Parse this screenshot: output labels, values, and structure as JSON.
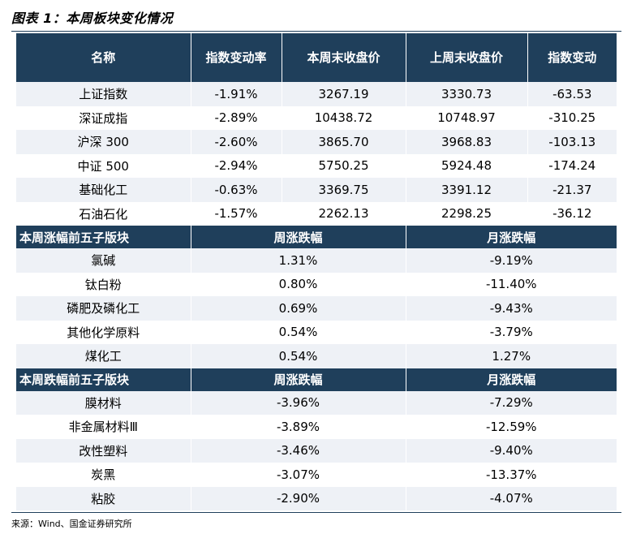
{
  "figure_title": "图表 1：本周板块变化情况",
  "source": "来源：Wind、国金证券研究所",
  "index_table": {
    "headers": [
      "名称",
      "指数变动率",
      "本周末收盘价",
      "上周末收盘价",
      "指数变动"
    ],
    "rows": [
      [
        "上证指数",
        "-1.91%",
        "3267.19",
        "3330.73",
        "-63.53"
      ],
      [
        "深证成指",
        "-2.89%",
        "10438.72",
        "10748.97",
        "-310.25"
      ],
      [
        "沪深 300",
        "-2.60%",
        "3865.70",
        "3968.83",
        "-103.13"
      ],
      [
        "中证 500",
        "-2.94%",
        "5750.25",
        "5924.48",
        "-174.24"
      ],
      [
        "基础化工",
        "-0.63%",
        "3369.75",
        "3391.12",
        "-21.37"
      ],
      [
        "石油石化",
        "-1.57%",
        "2262.13",
        "2298.25",
        "-36.12"
      ]
    ]
  },
  "top_gainers": {
    "headers": [
      "本周涨幅前五子版块",
      "周涨跌幅",
      "月涨跌幅"
    ],
    "rows": [
      [
        "氯碱",
        "1.31%",
        "-9.19%"
      ],
      [
        "钛白粉",
        "0.80%",
        "-11.40%"
      ],
      [
        "磷肥及磷化工",
        "0.69%",
        "-9.43%"
      ],
      [
        "其他化学原料",
        "0.54%",
        "-3.79%"
      ],
      [
        "煤化工",
        "0.54%",
        "1.27%"
      ]
    ]
  },
  "top_losers": {
    "headers": [
      "本周跌幅前五子版块",
      "周涨跌幅",
      "月涨跌幅"
    ],
    "rows": [
      [
        "膜材料",
        "-3.96%",
        "-7.29%"
      ],
      [
        "非金属材料Ⅲ",
        "-3.89%",
        "-12.59%"
      ],
      [
        "改性塑料",
        "-3.46%",
        "-9.40%"
      ],
      [
        "炭黑",
        "-3.07%",
        "-13.37%"
      ],
      [
        "粘胶",
        "-2.90%",
        "-4.07%"
      ]
    ]
  }
}
